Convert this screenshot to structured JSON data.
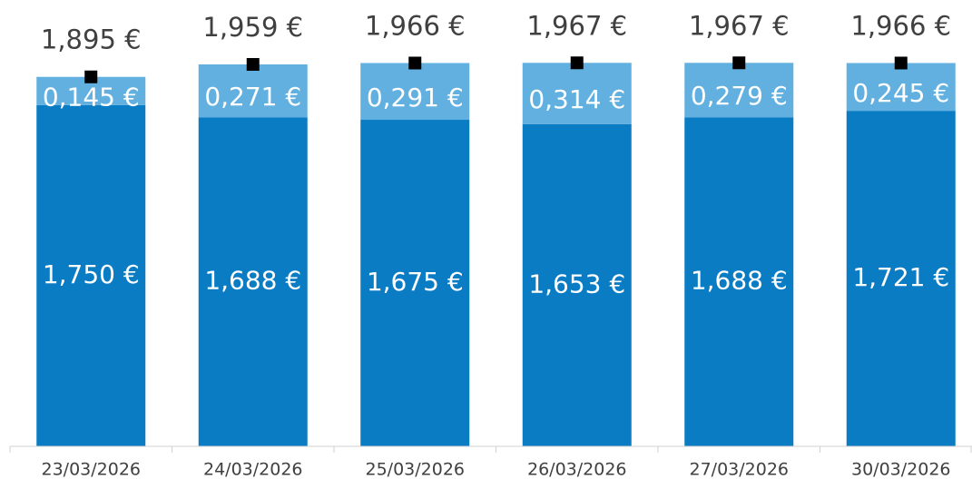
{
  "chart_data": {
    "type": "stacked_bar",
    "categories": [
      "23/03/2026",
      "24/03/2026",
      "25/03/2026",
      "26/03/2026",
      "27/03/2026",
      "30/03/2026"
    ],
    "series": [
      {
        "color": "#0a7cc4",
        "values": [
          1.75,
          1.688,
          1.675,
          1.653,
          1.688,
          1.721
        ],
        "value_labels": [
          "1,750 €",
          "1,688 €",
          "1,675 €",
          "1,653 €",
          "1,688 €",
          "1,721 €"
        ]
      },
      {
        "color": "#62b0e0",
        "values": [
          0.145,
          0.271,
          0.291,
          0.314,
          0.279,
          0.245
        ],
        "value_labels": [
          "0,145 €",
          "0,271 €",
          "0,291 €",
          "0,314 €",
          "0,279 €",
          "0,245 €"
        ]
      }
    ],
    "totals": {
      "color": "#000000",
      "values": [
        1.895,
        1.959,
        1.966,
        1.967,
        1.967,
        1.966
      ],
      "value_labels": [
        "1,895 €",
        "1,959 €",
        "1,966 €",
        "1,967 €",
        "1,967 €",
        "1,966 €"
      ]
    },
    "ylim": [
      0,
      2.28
    ]
  }
}
